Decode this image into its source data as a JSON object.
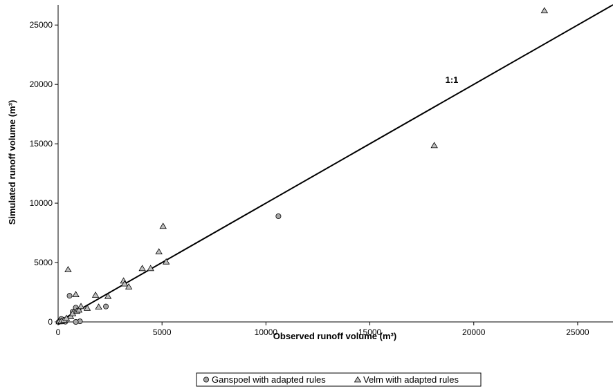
{
  "chart_data": {
    "type": "scatter",
    "title": "",
    "xlabel": "Observed runoff volume (m³)",
    "ylabel": "Simulated runoff volume (m³)",
    "xlim": [
      0,
      26700
    ],
    "ylim": [
      0,
      26700
    ],
    "x_ticks": [
      0,
      5000,
      10000,
      15000,
      20000,
      25000
    ],
    "y_ticks": [
      0,
      5000,
      10000,
      15000,
      20000,
      25000
    ],
    "grid": false,
    "legend_position": "bottom-center",
    "reference_line": {
      "label": "1:1",
      "from": [
        0,
        0
      ],
      "to": [
        26700,
        26700
      ]
    },
    "series": [
      {
        "name": "Ganspoel with adapted rules",
        "marker": "circle",
        "color": "#a6a6a6",
        "points": [
          [
            30,
            0
          ],
          [
            100,
            100
          ],
          [
            150,
            250
          ],
          [
            250,
            50
          ],
          [
            350,
            20
          ],
          [
            550,
            2200
          ],
          [
            700,
            850
          ],
          [
            850,
            1200
          ],
          [
            1050,
            50
          ],
          [
            2300,
            1300
          ],
          [
            10600,
            8900
          ],
          [
            850,
            0
          ]
        ]
      },
      {
        "name": "Velm with adapted rules",
        "marker": "triangle",
        "color": "#bfbfbf",
        "points": [
          [
            50,
            20
          ],
          [
            150,
            60
          ],
          [
            280,
            150
          ],
          [
            480,
            4400
          ],
          [
            600,
            450
          ],
          [
            700,
            700
          ],
          [
            850,
            2300
          ],
          [
            900,
            900
          ],
          [
            1000,
            1000
          ],
          [
            1100,
            1300
          ],
          [
            1400,
            1150
          ],
          [
            1800,
            2250
          ],
          [
            1950,
            1250
          ],
          [
            2400,
            2150
          ],
          [
            3150,
            3450
          ],
          [
            3200,
            3200
          ],
          [
            3400,
            2950
          ],
          [
            4050,
            4500
          ],
          [
            4450,
            4500
          ],
          [
            4850,
            5900
          ],
          [
            5050,
            8050
          ],
          [
            5200,
            5050
          ],
          [
            18100,
            14850
          ],
          [
            23400,
            26200
          ],
          [
            400,
            300
          ]
        ]
      }
    ]
  }
}
